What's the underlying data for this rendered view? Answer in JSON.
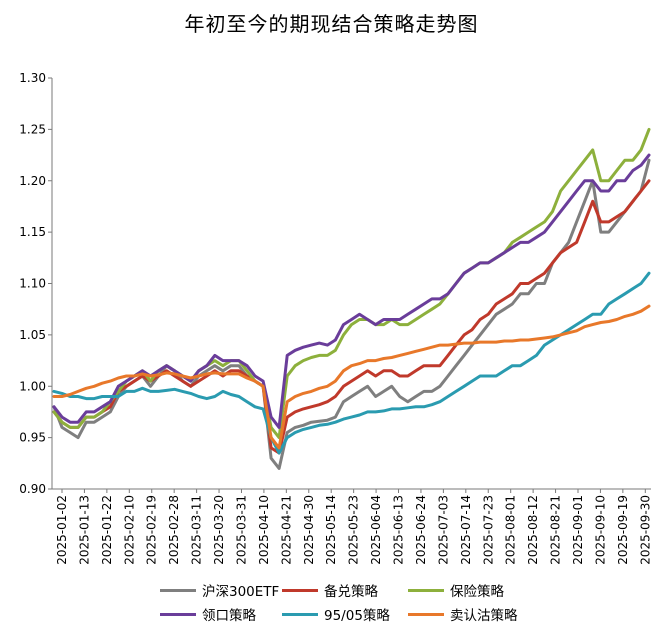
{
  "chart_data": {
    "type": "line",
    "title": "年初至今的期现结合策略走势图",
    "xlabel": "",
    "ylabel": "",
    "ylim": [
      0.9,
      1.3
    ],
    "yticks": [
      "0.90",
      "0.95",
      "1.00",
      "1.05",
      "1.10",
      "1.15",
      "1.20",
      "1.25",
      "1.30"
    ],
    "x_tick_labels": [
      "2025-01-02",
      "2025-01-13",
      "2025-01-22",
      "2025-02-10",
      "2025-02-19",
      "2025-02-28",
      "2025-03-11",
      "2025-03-20",
      "2025-03-31",
      "2025-04-10",
      "2025-04-21",
      "2025-04-30",
      "2025-05-14",
      "2025-05-23",
      "2025-06-04",
      "2025-06-13",
      "2025-06-24",
      "2025-07-03",
      "2025-07-14",
      "2025-07-23",
      "2025-08-01",
      "2025-08-12",
      "2025-08-21",
      "2025-09-01",
      "2025-09-10",
      "2025-09-19",
      "2025-09-30"
    ],
    "legend_position": "bottom",
    "series": [
      {
        "name": "沪深300ETF",
        "color": "#7f7f7f",
        "values": [
          0.98,
          0.96,
          0.955,
          0.95,
          0.965,
          0.965,
          0.97,
          0.975,
          0.99,
          1.0,
          1.005,
          1.01,
          1.0,
          1.01,
          1.02,
          1.015,
          1.005,
          1.0,
          1.01,
          1.015,
          1.02,
          1.015,
          1.02,
          1.02,
          1.01,
          1.005,
          1.0,
          0.93,
          0.92,
          0.955,
          0.96,
          0.962,
          0.965,
          0.966,
          0.967,
          0.97,
          0.985,
          0.99,
          0.995,
          1.0,
          0.99,
          0.995,
          1.0,
          0.99,
          0.985,
          0.99,
          0.995,
          0.995,
          1.0,
          1.01,
          1.02,
          1.03,
          1.04,
          1.05,
          1.06,
          1.07,
          1.075,
          1.08,
          1.09,
          1.09,
          1.1,
          1.1,
          1.12,
          1.13,
          1.14,
          1.16,
          1.18,
          1.2,
          1.15,
          1.15,
          1.16,
          1.17,
          1.18,
          1.19,
          1.22
        ]
      },
      {
        "name": "备兑策略",
        "color": "#c0392b",
        "values": [
          0.975,
          0.965,
          0.96,
          0.96,
          0.97,
          0.97,
          0.975,
          0.98,
          0.995,
          1.0,
          1.005,
          1.01,
          1.005,
          1.01,
          1.015,
          1.01,
          1.005,
          1.0,
          1.005,
          1.01,
          1.015,
          1.01,
          1.015,
          1.015,
          1.01,
          1.005,
          1.0,
          0.94,
          0.935,
          0.97,
          0.975,
          0.978,
          0.98,
          0.982,
          0.985,
          0.99,
          1.0,
          1.005,
          1.01,
          1.015,
          1.01,
          1.015,
          1.015,
          1.01,
          1.01,
          1.015,
          1.02,
          1.02,
          1.02,
          1.03,
          1.04,
          1.05,
          1.055,
          1.065,
          1.07,
          1.08,
          1.085,
          1.09,
          1.1,
          1.1,
          1.105,
          1.11,
          1.12,
          1.13,
          1.135,
          1.14,
          1.16,
          1.18,
          1.16,
          1.16,
          1.165,
          1.17,
          1.18,
          1.19,
          1.2
        ]
      },
      {
        "name": "保险策略",
        "color": "#8db03c",
        "values": [
          0.975,
          0.965,
          0.96,
          0.96,
          0.97,
          0.97,
          0.975,
          0.985,
          0.995,
          1.005,
          1.01,
          1.015,
          1.005,
          1.015,
          1.02,
          1.015,
          1.01,
          1.005,
          1.015,
          1.02,
          1.025,
          1.02,
          1.025,
          1.025,
          1.015,
          1.005,
          1.0,
          0.96,
          0.95,
          1.01,
          1.02,
          1.025,
          1.028,
          1.03,
          1.03,
          1.035,
          1.05,
          1.06,
          1.065,
          1.065,
          1.06,
          1.06,
          1.065,
          1.06,
          1.06,
          1.065,
          1.07,
          1.075,
          1.08,
          1.09,
          1.1,
          1.11,
          1.115,
          1.12,
          1.12,
          1.125,
          1.13,
          1.14,
          1.145,
          1.15,
          1.155,
          1.16,
          1.17,
          1.19,
          1.2,
          1.21,
          1.22,
          1.23,
          1.2,
          1.2,
          1.21,
          1.22,
          1.22,
          1.23,
          1.25
        ]
      },
      {
        "name": "领口策略",
        "color": "#6a3d9a",
        "values": [
          0.98,
          0.97,
          0.965,
          0.965,
          0.975,
          0.975,
          0.98,
          0.985,
          1.0,
          1.005,
          1.01,
          1.015,
          1.01,
          1.015,
          1.02,
          1.015,
          1.01,
          1.005,
          1.015,
          1.02,
          1.03,
          1.025,
          1.025,
          1.025,
          1.02,
          1.01,
          1.005,
          0.97,
          0.96,
          1.03,
          1.035,
          1.038,
          1.04,
          1.042,
          1.04,
          1.045,
          1.06,
          1.065,
          1.07,
          1.065,
          1.06,
          1.065,
          1.065,
          1.065,
          1.07,
          1.075,
          1.08,
          1.085,
          1.085,
          1.09,
          1.1,
          1.11,
          1.115,
          1.12,
          1.12,
          1.125,
          1.13,
          1.135,
          1.14,
          1.14,
          1.145,
          1.15,
          1.16,
          1.17,
          1.18,
          1.19,
          1.2,
          1.2,
          1.19,
          1.19,
          1.2,
          1.2,
          1.21,
          1.215,
          1.225
        ]
      },
      {
        "name": "95/05策略",
        "color": "#2a9bb0",
        "values": [
          0.995,
          0.993,
          0.99,
          0.99,
          0.988,
          0.988,
          0.99,
          0.99,
          0.99,
          0.995,
          0.995,
          0.998,
          0.995,
          0.995,
          0.996,
          0.997,
          0.995,
          0.993,
          0.99,
          0.988,
          0.99,
          0.995,
          0.992,
          0.99,
          0.985,
          0.98,
          0.978,
          0.95,
          0.935,
          0.95,
          0.955,
          0.958,
          0.96,
          0.962,
          0.963,
          0.965,
          0.968,
          0.97,
          0.972,
          0.975,
          0.975,
          0.976,
          0.978,
          0.978,
          0.979,
          0.98,
          0.98,
          0.982,
          0.985,
          0.99,
          0.995,
          1.0,
          1.005,
          1.01,
          1.01,
          1.01,
          1.015,
          1.02,
          1.02,
          1.025,
          1.03,
          1.04,
          1.045,
          1.05,
          1.055,
          1.06,
          1.065,
          1.07,
          1.07,
          1.08,
          1.085,
          1.09,
          1.095,
          1.1,
          1.11
        ]
      },
      {
        "name": "卖认沽策略",
        "color": "#e8782a",
        "values": [
          0.99,
          0.99,
          0.992,
          0.995,
          0.998,
          1.0,
          1.003,
          1.005,
          1.008,
          1.01,
          1.01,
          1.012,
          1.01,
          1.011,
          1.013,
          1.012,
          1.01,
          1.008,
          1.01,
          1.012,
          1.013,
          1.012,
          1.012,
          1.012,
          1.008,
          1.005,
          1.0,
          0.95,
          0.94,
          0.985,
          0.99,
          0.993,
          0.995,
          0.998,
          1.0,
          1.005,
          1.015,
          1.02,
          1.022,
          1.025,
          1.025,
          1.027,
          1.028,
          1.03,
          1.032,
          1.034,
          1.036,
          1.038,
          1.04,
          1.04,
          1.041,
          1.042,
          1.042,
          1.043,
          1.043,
          1.043,
          1.044,
          1.044,
          1.045,
          1.045,
          1.046,
          1.047,
          1.048,
          1.05,
          1.052,
          1.054,
          1.058,
          1.06,
          1.062,
          1.063,
          1.065,
          1.068,
          1.07,
          1.073,
          1.078
        ]
      }
    ]
  }
}
